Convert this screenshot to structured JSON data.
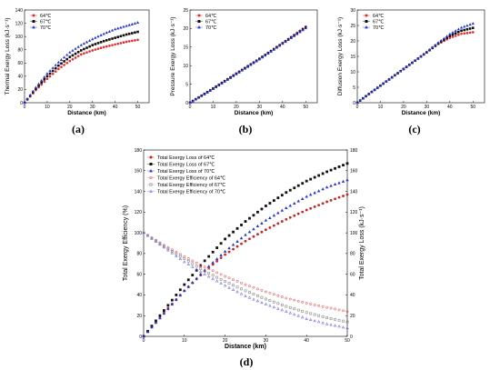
{
  "chart_data": [
    {
      "id": "a",
      "type": "scatter",
      "panel_label": "(a)",
      "xlabel": "Distance (km)",
      "ylabel": "Thermal Exergy Loss (kJ·s⁻¹)",
      "xlim": [
        0,
        55
      ],
      "ylim": [
        0,
        140
      ],
      "xticks": [
        0,
        10,
        20,
        30,
        40,
        50
      ],
      "yticks": [
        0,
        20,
        40,
        60,
        80,
        100,
        120,
        140
      ],
      "legend_position": "top-left",
      "series": [
        {
          "name": "64℃",
          "color": "#e8262a",
          "marker": "circle",
          "x": [
            0,
            5,
            10,
            15,
            20,
            25,
            30,
            35,
            40,
            45,
            50
          ],
          "y": [
            0,
            19,
            36,
            51,
            63,
            73,
            79,
            84,
            88,
            92,
            95
          ]
        },
        {
          "name": "67℃",
          "color": "#111111",
          "marker": "square",
          "x": [
            0,
            5,
            10,
            15,
            20,
            25,
            30,
            35,
            40,
            45,
            50
          ],
          "y": [
            0,
            21,
            40,
            56,
            69,
            79,
            87,
            93,
            98,
            103,
            107
          ]
        },
        {
          "name": "70℃",
          "color": "#2233dd",
          "marker": "triangle",
          "x": [
            0,
            5,
            10,
            15,
            20,
            25,
            30,
            35,
            40,
            45,
            50
          ],
          "y": [
            0,
            23,
            44,
            61,
            76,
            87,
            96,
            104,
            111,
            116,
            121
          ]
        }
      ]
    },
    {
      "id": "b",
      "type": "scatter",
      "panel_label": "(b)",
      "xlabel": "Distance (km)",
      "ylabel": "Pressure Exergy Loss (kJ·s⁻¹)",
      "xlim": [
        0,
        55
      ],
      "ylim": [
        0,
        25
      ],
      "xticks": [
        0,
        10,
        20,
        30,
        40,
        50
      ],
      "yticks": [
        0,
        5,
        10,
        15,
        20,
        25
      ],
      "legend_position": "top-left",
      "series": [
        {
          "name": "64℃",
          "color": "#e8262a",
          "marker": "circle",
          "x": [
            0,
            5,
            10,
            15,
            20,
            25,
            30,
            35,
            40,
            45,
            50
          ],
          "y": [
            0,
            1.9,
            3.9,
            5.9,
            7.9,
            9.9,
            11.9,
            14.0,
            16.1,
            18.3,
            20.5
          ]
        },
        {
          "name": "67℃",
          "color": "#111111",
          "marker": "square",
          "x": [
            0,
            5,
            10,
            15,
            20,
            25,
            30,
            35,
            40,
            45,
            50
          ],
          "y": [
            0,
            1.9,
            3.8,
            5.8,
            7.8,
            9.8,
            11.8,
            13.9,
            16.0,
            18.1,
            20.3
          ]
        },
        {
          "name": "70℃",
          "color": "#2233dd",
          "marker": "triangle",
          "x": [
            0,
            5,
            10,
            15,
            20,
            25,
            30,
            35,
            40,
            45,
            50
          ],
          "y": [
            0,
            1.8,
            3.7,
            5.7,
            7.7,
            9.7,
            11.7,
            13.8,
            15.9,
            18.0,
            20.1
          ]
        }
      ]
    },
    {
      "id": "c",
      "type": "scatter",
      "panel_label": "(c)",
      "xlabel": "Distance (km)",
      "ylabel": "Diffusion Exergy Loss (kJ·s⁻¹)",
      "xlim": [
        0,
        55
      ],
      "ylim": [
        0,
        30
      ],
      "xticks": [
        0,
        10,
        20,
        30,
        40,
        50
      ],
      "yticks": [
        0,
        5,
        10,
        15,
        20,
        25,
        30
      ],
      "legend_position": "top-left",
      "series": [
        {
          "name": "64℃",
          "color": "#e8262a",
          "marker": "circle",
          "x": [
            0,
            5,
            10,
            15,
            20,
            25,
            30,
            35,
            40,
            45,
            50
          ],
          "y": [
            0,
            2.8,
            5.5,
            8.2,
            10.9,
            13.6,
            16.3,
            19.0,
            21.0,
            22.3,
            22.8
          ]
        },
        {
          "name": "67℃",
          "color": "#111111",
          "marker": "square",
          "x": [
            0,
            5,
            10,
            15,
            20,
            25,
            30,
            35,
            40,
            45,
            50
          ],
          "y": [
            0,
            2.8,
            5.5,
            8.2,
            10.9,
            13.6,
            16.3,
            19.2,
            21.6,
            23.3,
            24.2
          ]
        },
        {
          "name": "70℃",
          "color": "#2233dd",
          "marker": "triangle",
          "x": [
            0,
            5,
            10,
            15,
            20,
            25,
            30,
            35,
            40,
            45,
            50
          ],
          "y": [
            0,
            2.8,
            5.5,
            8.2,
            10.9,
            13.6,
            16.4,
            19.4,
            22.2,
            24.3,
            25.6
          ]
        }
      ]
    },
    {
      "id": "d",
      "type": "scatter",
      "panel_label": "(d)",
      "xlabel": "Distance (km)",
      "ylabel_left": "Total Exergy Efficiency (%)",
      "ylabel_right": "Total Exergy Loss (kJ·s⁻¹)",
      "xlim": [
        0,
        50
      ],
      "ylim": [
        0,
        180
      ],
      "xticks": [
        0,
        10,
        20,
        30,
        40,
        50
      ],
      "yticks": [
        0,
        20,
        40,
        60,
        80,
        100,
        120,
        140,
        160,
        180
      ],
      "legend_position": "top-left",
      "series": [
        {
          "name": "Total Exergy Loss of 64℃",
          "color": "#cc2222",
          "marker": "circle",
          "filled": true,
          "x": [
            0,
            5,
            10,
            15,
            20,
            25,
            30,
            35,
            40,
            45,
            50
          ],
          "y": [
            0,
            23,
            44,
            63,
            79,
            92,
            103,
            113,
            122,
            130,
            137
          ]
        },
        {
          "name": "Total Exergy Loss of 67℃",
          "color": "#111111",
          "marker": "square",
          "filled": true,
          "x": [
            0,
            5,
            10,
            15,
            20,
            25,
            30,
            35,
            40,
            45,
            50
          ],
          "y": [
            0,
            25,
            50,
            73,
            94,
            111,
            126,
            139,
            150,
            159,
            167
          ]
        },
        {
          "name": "Total Exergy Loss of 70℃",
          "color": "#2233dd",
          "marker": "triangle",
          "filled": true,
          "x": [
            0,
            5,
            10,
            15,
            20,
            25,
            30,
            35,
            40,
            45,
            50
          ],
          "y": [
            0,
            22,
            44,
            64,
            82,
            98,
            112,
            124,
            135,
            144,
            151
          ]
        },
        {
          "name": "Total Exergy Efficiency of 64℃",
          "color": "#ee6666",
          "marker": "circle",
          "filled": false,
          "x": [
            0,
            5,
            10,
            15,
            20,
            25,
            30,
            35,
            40,
            45,
            50
          ],
          "y": [
            100,
            88,
            77,
            67,
            58,
            50,
            43,
            37,
            32,
            28,
            24
          ]
        },
        {
          "name": "Total Exergy Efficiency of 67℃",
          "color": "#888888",
          "marker": "square",
          "filled": false,
          "x": [
            0,
            5,
            10,
            15,
            20,
            25,
            30,
            35,
            40,
            45,
            50
          ],
          "y": [
            100,
            87,
            75,
            63,
            53,
            44,
            36,
            29,
            23,
            18,
            14
          ]
        },
        {
          "name": "Total Exergy Efficiency of 70℃",
          "color": "#7777ee",
          "marker": "triangle",
          "filled": false,
          "x": [
            0,
            5,
            10,
            15,
            20,
            25,
            30,
            35,
            40,
            45,
            50
          ],
          "y": [
            100,
            86,
            72,
            60,
            49,
            39,
            31,
            24,
            17,
            12,
            8
          ]
        }
      ]
    }
  ]
}
